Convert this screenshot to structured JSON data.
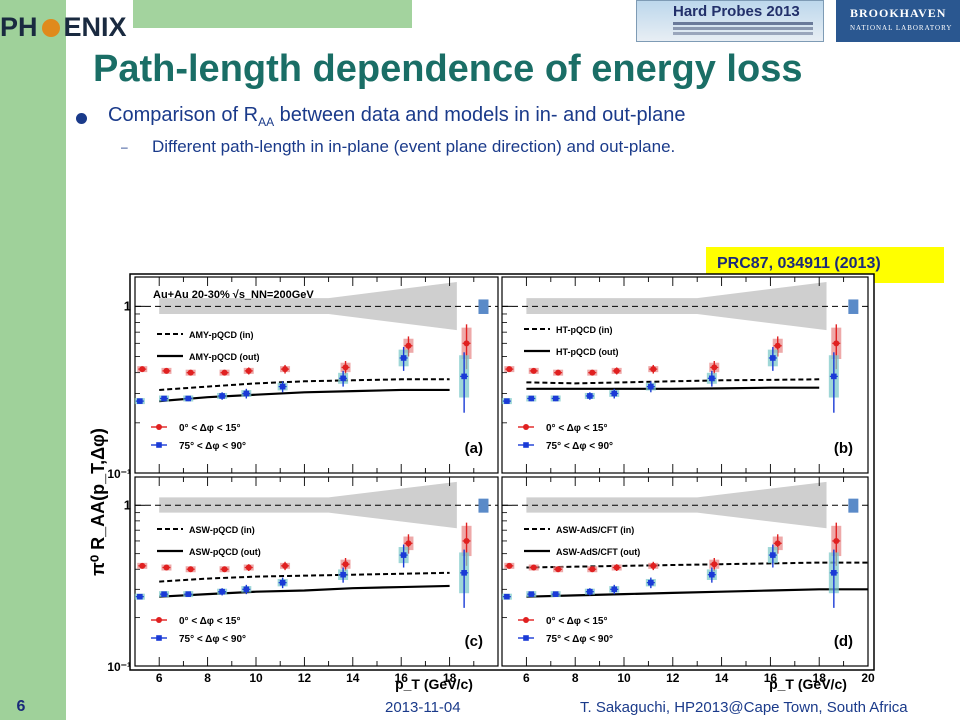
{
  "header": {
    "logo_text_left": "PH",
    "logo_text_right": "ENIX",
    "conference_logo": "Hard Probes 2013",
    "lab_logo_line1": "BROOKHAVEN",
    "lab_logo_line2": "NATIONAL LABORATORY"
  },
  "slide": {
    "title": "Path-length dependence of energy loss",
    "bullet_main_pre": "Comparison of R",
    "bullet_main_sub": "AA",
    "bullet_main_post": " between data and models in in- and out-plane",
    "bullet_dash": "–",
    "bullet_sub": "Different path-length in in-plane (event plane direction) and out-plane.",
    "reference": "PRC87, 034911 (2013)"
  },
  "footer": {
    "page": "6",
    "date": "2013-11-04",
    "author": "T. Sakaguchi, HP2013@Cape Town, South Africa"
  },
  "colors": {
    "in_plane": "#e02020",
    "out_plane": "#1a3ad6",
    "in_box": "#e88c8c",
    "out_box": "#7fc9c9",
    "norm_box": "#5a8ac8",
    "band": "#cfcfcf"
  },
  "chart_data": {
    "type": "scatter",
    "ylabel": "π⁰ R_AA(p_T,Δφ)",
    "xlabel": "p_T (GeV/c)",
    "x_ticks": [
      6,
      8,
      10,
      12,
      14,
      16,
      18,
      20
    ],
    "y_ticks": [
      "1",
      "10⁻¹"
    ],
    "yscale": "log",
    "ylim": [
      0.1,
      1.5
    ],
    "xlim_left": [
      5,
      20
    ],
    "xlim_right": [
      5,
      20
    ],
    "system_label": "Au+Au 20-30% √s_NN=200GeV",
    "legend_in": "0° < Δφ < 15°",
    "legend_out": "75° < Δφ < 90°",
    "in_x": [
      5.3,
      6.3,
      7.3,
      8.7,
      9.7,
      11.2,
      13.7,
      16.3,
      18.7
    ],
    "in_y": [
      0.42,
      0.41,
      0.4,
      0.4,
      0.41,
      0.42,
      0.43,
      0.58,
      0.6
    ],
    "in_err": [
      0.01,
      0.01,
      0.01,
      0.015,
      0.02,
      0.025,
      0.04,
      0.08,
      0.18
    ],
    "out_x": [
      5.2,
      6.2,
      7.2,
      8.6,
      9.6,
      11.1,
      13.6,
      16.1,
      18.6
    ],
    "out_y": [
      0.27,
      0.28,
      0.28,
      0.29,
      0.3,
      0.33,
      0.37,
      0.49,
      0.38
    ],
    "out_err": [
      0.01,
      0.01,
      0.01,
      0.015,
      0.02,
      0.025,
      0.04,
      0.08,
      0.15
    ],
    "panels": [
      {
        "id": "a",
        "label": "(a)",
        "model_in": "AMY-pQCD (in)",
        "model_out": "AMY-pQCD (out)",
        "in_curve": [
          [
            6,
            0.315
          ],
          [
            8,
            0.33
          ],
          [
            10,
            0.345
          ],
          [
            12,
            0.355
          ],
          [
            14,
            0.36
          ],
          [
            16,
            0.365
          ],
          [
            18,
            0.365
          ]
        ],
        "out_curve": [
          [
            6,
            0.27
          ],
          [
            8,
            0.285
          ],
          [
            10,
            0.295
          ],
          [
            12,
            0.305
          ],
          [
            14,
            0.31
          ],
          [
            16,
            0.315
          ],
          [
            18,
            0.315
          ]
        ]
      },
      {
        "id": "b",
        "label": "(b)",
        "model_in": "HT-pQCD (in)",
        "model_out": "HT-pQCD (out)",
        "in_curve": [
          [
            6,
            0.35
          ],
          [
            8,
            0.345
          ],
          [
            10,
            0.35
          ],
          [
            12,
            0.355
          ],
          [
            14,
            0.36
          ],
          [
            16,
            0.362
          ],
          [
            18,
            0.365
          ]
        ],
        "out_curve": [
          [
            6,
            0.32
          ],
          [
            8,
            0.32
          ],
          [
            10,
            0.32
          ],
          [
            12,
            0.32
          ],
          [
            14,
            0.322
          ],
          [
            16,
            0.325
          ],
          [
            18,
            0.325
          ]
        ]
      },
      {
        "id": "c",
        "label": "(c)",
        "model_in": "ASW-pQCD (in)",
        "model_out": "ASW-pQCD (out)",
        "in_curve": [
          [
            6,
            0.335
          ],
          [
            8,
            0.35
          ],
          [
            10,
            0.36
          ],
          [
            12,
            0.365
          ],
          [
            14,
            0.37
          ],
          [
            16,
            0.375
          ],
          [
            18,
            0.38
          ]
        ],
        "out_curve": [
          [
            6,
            0.27
          ],
          [
            8,
            0.28
          ],
          [
            10,
            0.29
          ],
          [
            12,
            0.295
          ],
          [
            14,
            0.305
          ],
          [
            16,
            0.31
          ],
          [
            18,
            0.315
          ]
        ]
      },
      {
        "id": "d",
        "label": "(d)",
        "model_in": "ASW-AdS/CFT (in)",
        "model_out": "ASW-AdS/CFT (out)",
        "in_curve": [
          [
            6,
            0.41
          ],
          [
            8,
            0.415
          ],
          [
            10,
            0.42
          ],
          [
            12,
            0.425
          ],
          [
            14,
            0.43
          ],
          [
            16,
            0.435
          ],
          [
            18,
            0.44
          ],
          [
            20,
            0.44
          ]
        ],
        "out_curve": [
          [
            6,
            0.27
          ],
          [
            8,
            0.275
          ],
          [
            10,
            0.28
          ],
          [
            12,
            0.285
          ],
          [
            14,
            0.29
          ],
          [
            16,
            0.295
          ],
          [
            18,
            0.3
          ],
          [
            20,
            0.3
          ]
        ]
      }
    ]
  }
}
